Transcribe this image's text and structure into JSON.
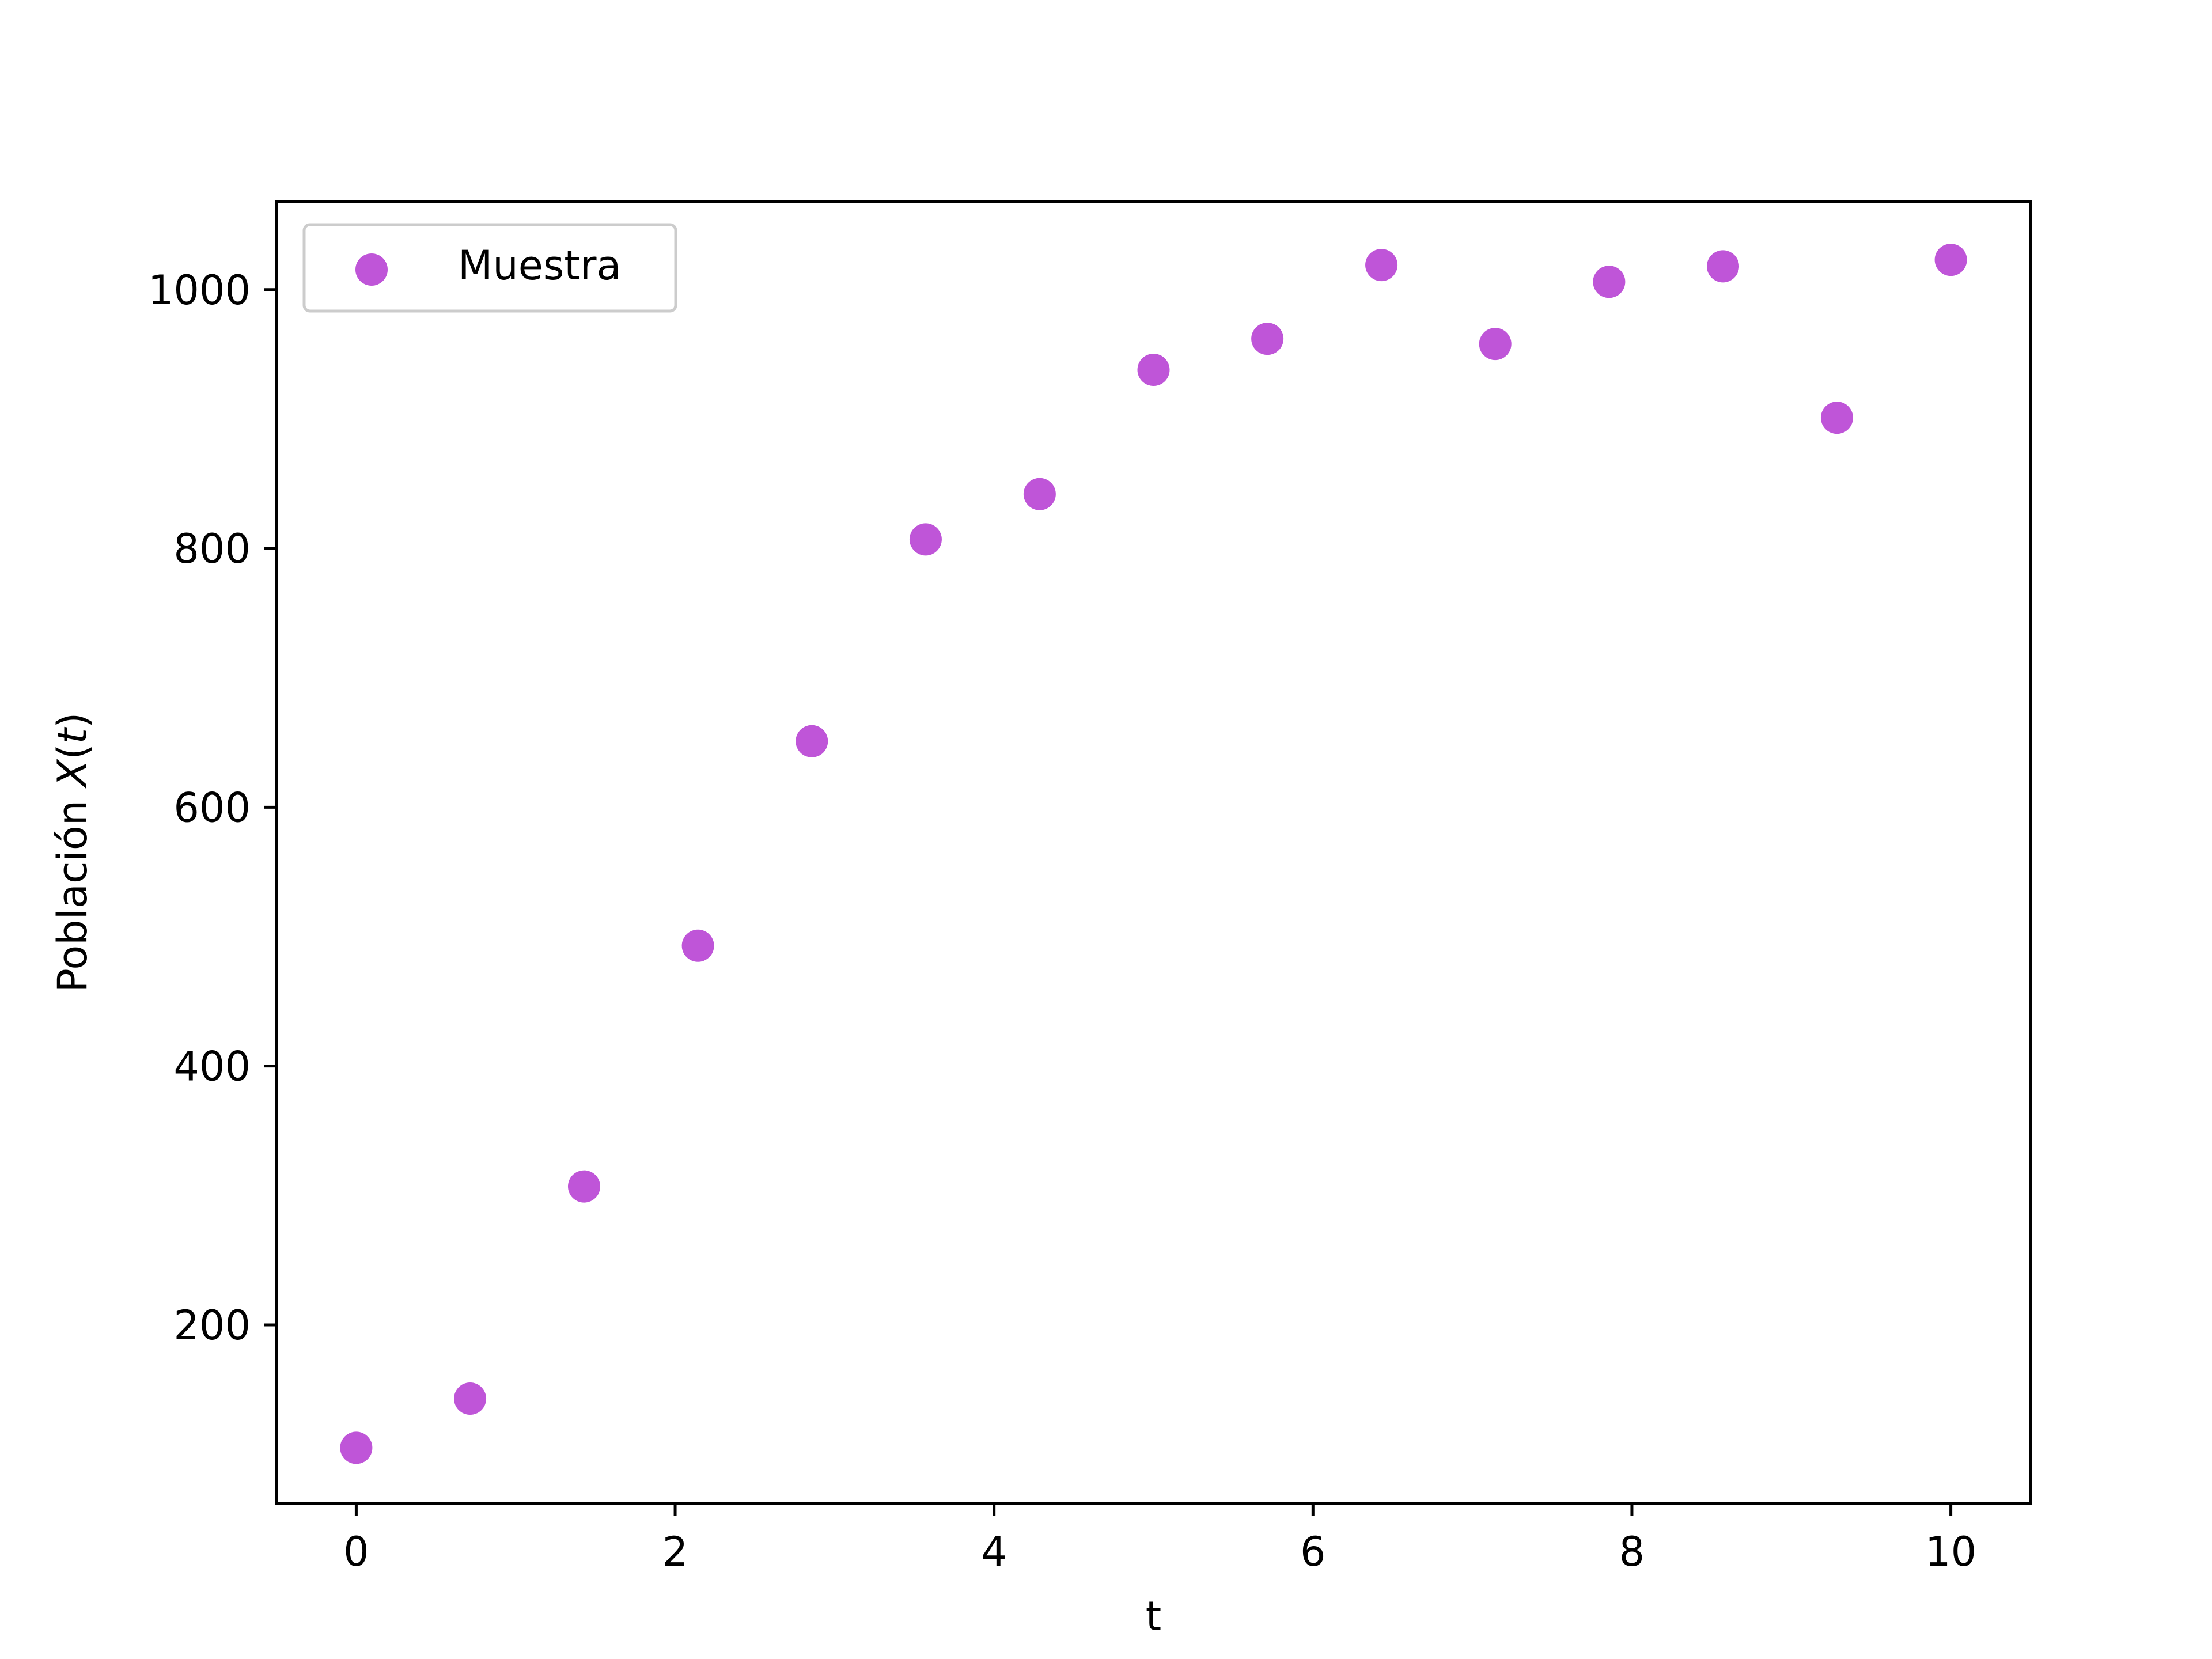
{
  "chart_data": {
    "type": "scatter",
    "title": "",
    "xlabel": "t",
    "ylabel_prefix": "Población ",
    "ylabel_var": "X",
    "ylabel_open": "(",
    "ylabel_arg": "t",
    "ylabel_close": ")",
    "xlim": [
      -0.5,
      10.5
    ],
    "ylim": [
      62,
      1068
    ],
    "x_ticks": [
      0,
      2,
      4,
      6,
      8,
      10
    ],
    "x_tick_labels": [
      "0",
      "2",
      "4",
      "6",
      "8",
      "10"
    ],
    "y_ticks": [
      200,
      400,
      600,
      800,
      1000
    ],
    "y_tick_labels": [
      "200",
      "400",
      "600",
      "800",
      "1000"
    ],
    "grid": false,
    "legend_position": "upper-left",
    "series": [
      {
        "name": "Muestra",
        "color": "#bf55d8",
        "marker": "circle",
        "x": [
          0.0,
          0.714,
          1.429,
          2.143,
          2.857,
          3.571,
          4.286,
          5.0,
          5.714,
          6.429,
          7.143,
          7.857,
          8.571,
          9.286,
          10.0
        ],
        "y": [
          105,
          143,
          307,
          493,
          651,
          807,
          842,
          938,
          962,
          1019,
          958,
          1006,
          1018,
          901,
          1023
        ]
      }
    ]
  }
}
